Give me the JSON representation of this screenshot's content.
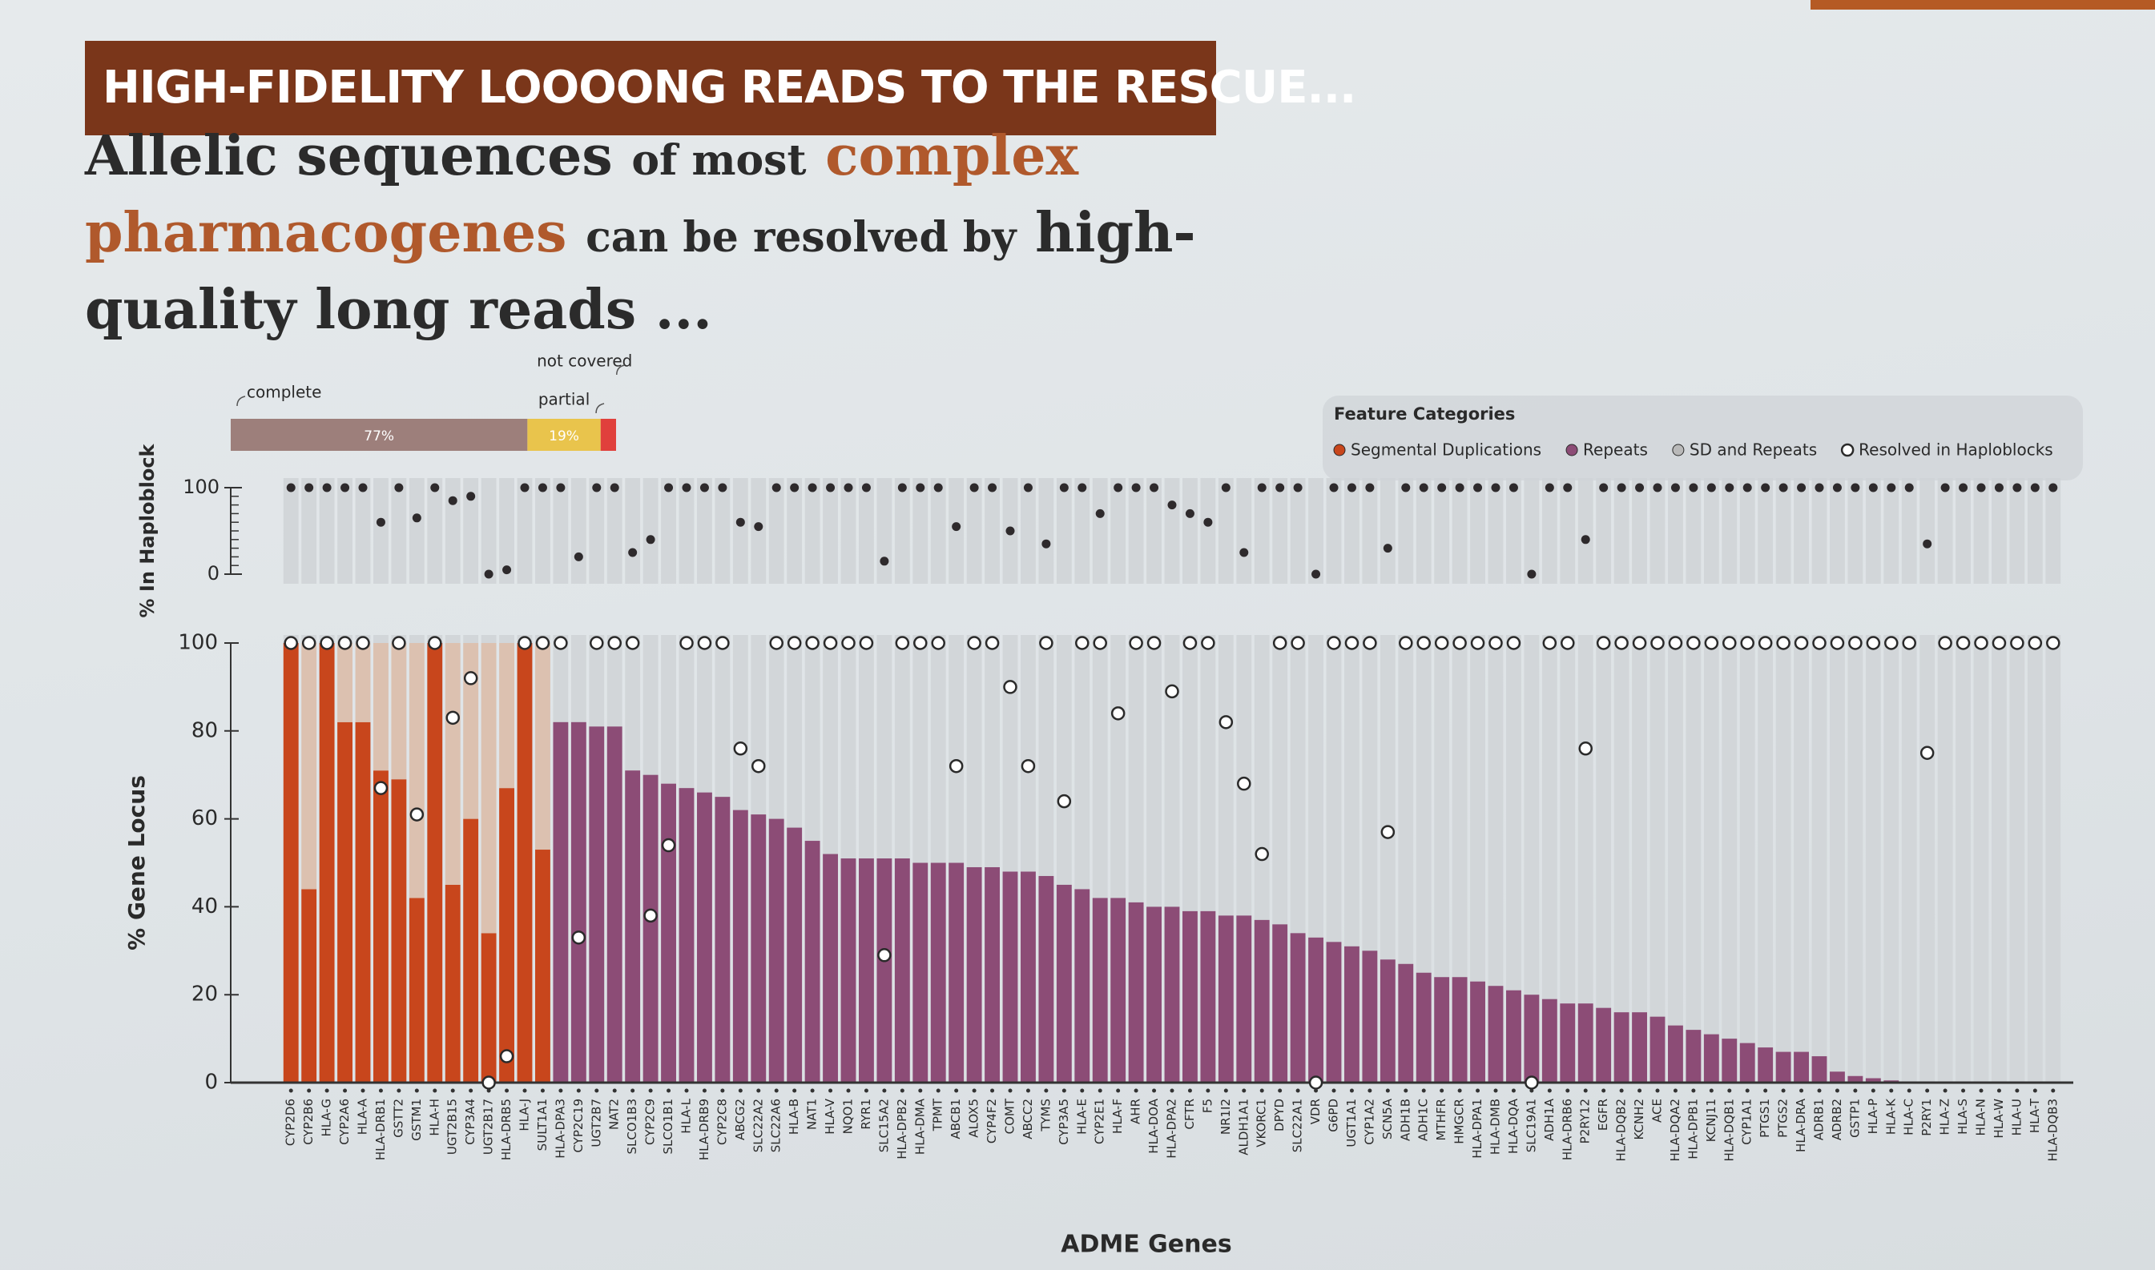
{
  "banner": "HIGH-FIDELITY LOOOONG READS TO THE RESCUE...",
  "headline": [
    "Allelic sequences",
    "of most",
    "complex",
    "pharmacogenes",
    "can be resolved by",
    "high-",
    "quality long reads ..."
  ],
  "chart_data": [
    {
      "type": "stacked-bar",
      "categories": [
        "complete",
        "partial",
        "not covered"
      ],
      "values": [
        77,
        19,
        4
      ],
      "value_labels": [
        "77%",
        "19%",
        null
      ],
      "colors": [
        "#9d7f7b",
        "#e9c44c",
        "#e0403c"
      ]
    },
    {
      "type": "dot",
      "ylabel": "% In Haploblock",
      "color": "#2e2a2c",
      "ylim": [
        0,
        100
      ],
      "yticks": [
        0,
        100
      ],
      "values": [
        100,
        100,
        100,
        100,
        100,
        60,
        100,
        65,
        100,
        85,
        90,
        0,
        5,
        100,
        100,
        100,
        20,
        100,
        100,
        25,
        40,
        100,
        100,
        100,
        100,
        60,
        55,
        100,
        100,
        100,
        100,
        100,
        100,
        15,
        100,
        100,
        100,
        55,
        100,
        100,
        50,
        100,
        35,
        100,
        100,
        70,
        100,
        100,
        100,
        80,
        70,
        60,
        100,
        25,
        100,
        100,
        100,
        0,
        100,
        100,
        100,
        30,
        100,
        100,
        100,
        100,
        100,
        100,
        100,
        0,
        100,
        100,
        40,
        100,
        100,
        100,
        100,
        100,
        100,
        100,
        100,
        100,
        100,
        100,
        100,
        100,
        100,
        100,
        100,
        100,
        100,
        35,
        100,
        100,
        100,
        100,
        100,
        100,
        100
      ]
    },
    {
      "type": "bar",
      "xlabel": "ADME Genes",
      "ylabel": "% Gene Locus",
      "ylim": [
        0,
        100
      ],
      "yticks": [
        0,
        20,
        40,
        60,
        80,
        100
      ],
      "legend": {
        "title": "Feature Categories"
      },
      "categories": [
        "CYP2D6",
        "CYP2B6",
        "HLA-G",
        "CYP2A6",
        "HLA-A",
        "HLA-DRB1",
        "GSTT2",
        "GSTM1",
        "HLA-H",
        "UGT2B15",
        "CYP3A4",
        "UGT2B17",
        "HLA-DRB5",
        "HLA-J",
        "SULT1A1",
        "HLA-DPA3",
        "CYP2C19",
        "UGT2B7",
        "NAT2",
        "SLCO1B3",
        "CYP2C9",
        "SLCO1B1",
        "HLA-L",
        "HLA-DRB9",
        "CYP2C8",
        "ABCG2",
        "SLC22A2",
        "SLC22A6",
        "HLA-B",
        "NAT1",
        "HLA-V",
        "NQO1",
        "RYR1",
        "SLC15A2",
        "HLA-DPB2",
        "HLA-DMA",
        "TPMT",
        "ABCB1",
        "ALOX5",
        "CYP4F2",
        "COMT",
        "ABCC2",
        "TYMS",
        "CYP3A5",
        "HLA-E",
        "CYP2E1",
        "HLA-F",
        "AHR",
        "HLA-DOA",
        "HLA-DPA2",
        "CFTR",
        "F5",
        "NR1I2",
        "ALDH1A1",
        "VKORC1",
        "DPYD",
        "SLC22A1",
        "VDR",
        "G6PD",
        "UGT1A1",
        "CYP1A2",
        "SCN5A",
        "ADH1B",
        "ADH1C",
        "MTHFR",
        "HMGCR",
        "HLA-DPA1",
        "HLA-DMB",
        "HLA-DQA",
        "SLC19A1",
        "ADH1A",
        "HLA-DRB6",
        "P2RY12",
        "EGFR",
        "HLA-DQB2",
        "KCNH2",
        "ACE",
        "HLA-DQA2",
        "HLA-DPB1",
        "KCNJ11",
        "HLA-DQB1",
        "CYP1A1",
        "PTGS1",
        "PTGS2",
        "HLA-DRA",
        "ADRB1",
        "ADRB2",
        "GSTP1",
        "HLA-P",
        "HLA-K",
        "HLA-C",
        "P2RY1",
        "HLA-Z",
        "HLA-S",
        "HLA-N",
        "HLA-W",
        "HLA-U",
        "HLA-T",
        "HLA-DQB3"
      ],
      "series": [
        {
          "name": "Segmental Duplications",
          "color": "#c8461c",
          "values": [
            100,
            44,
            100,
            82,
            82,
            71,
            69,
            42,
            100,
            45,
            60,
            34,
            67,
            100,
            53,
            null,
            null,
            null,
            null,
            null,
            null,
            null,
            null,
            null,
            null,
            null,
            null,
            null,
            null,
            null,
            null,
            null,
            null,
            null,
            null,
            null,
            null,
            null,
            null,
            null,
            null,
            null,
            null,
            null,
            null,
            null,
            null,
            null,
            null,
            null,
            null,
            null,
            null,
            null,
            null,
            null,
            null,
            null,
            null,
            null,
            null,
            null,
            null,
            null,
            null,
            null,
            null,
            null,
            null,
            null,
            null,
            null,
            null,
            null,
            null,
            null,
            null,
            null,
            null,
            null,
            null,
            null,
            null,
            null,
            null,
            null,
            null,
            null,
            null,
            null,
            null,
            null,
            null,
            null,
            null,
            null,
            null,
            null,
            null
          ]
        },
        {
          "name": "Repeats",
          "color": "#8c4c76",
          "values": [
            null,
            null,
            null,
            null,
            null,
            null,
            null,
            null,
            null,
            null,
            null,
            null,
            null,
            null,
            null,
            82,
            82,
            81,
            81,
            71,
            70,
            68,
            67,
            66,
            65,
            62,
            61,
            60,
            58,
            55,
            52,
            51,
            51,
            51,
            51,
            50,
            50,
            50,
            49,
            49,
            48,
            48,
            47,
            45,
            44,
            42,
            42,
            41,
            40,
            40,
            39,
            39,
            38,
            38,
            37,
            36,
            34,
            33,
            32,
            31,
            30,
            28,
            27,
            25,
            24,
            24,
            23,
            22,
            21,
            20,
            19,
            18,
            18,
            17,
            16,
            16,
            15,
            13,
            12,
            11,
            10,
            9,
            8,
            7,
            7,
            6,
            2.5,
            1.5,
            1,
            0.5,
            0,
            0,
            0,
            0,
            0,
            0,
            0,
            0,
            0
          ]
        },
        {
          "name": "SD and Repeats",
          "color": "#b9b9b9",
          "values": [
            null,
            null,
            null,
            null,
            null,
            null,
            null,
            null,
            null,
            null,
            null,
            null,
            null,
            null,
            null,
            null,
            null,
            null,
            null,
            null,
            null,
            null,
            null,
            null,
            null,
            null,
            null,
            null,
            null,
            null,
            null,
            null,
            null,
            null,
            null,
            null,
            null,
            null,
            null,
            null,
            null,
            null,
            null,
            null,
            null,
            null,
            null,
            null,
            null,
            null,
            null,
            null,
            null,
            null,
            null,
            null,
            null,
            null,
            null,
            null,
            null,
            null,
            null,
            null,
            null,
            null,
            null,
            null,
            null,
            null,
            null,
            null,
            null,
            null,
            null,
            null,
            null,
            null,
            null,
            null,
            null,
            null,
            null,
            null,
            null,
            null,
            null,
            null,
            null,
            null,
            null,
            null,
            null,
            null,
            null,
            null,
            null,
            null,
            null
          ]
        },
        {
          "color": "#dcc1b0",
          "values": [
            0,
            56,
            0,
            18,
            18,
            29,
            31,
            58,
            0,
            55,
            40,
            66,
            33,
            0,
            47,
            null,
            null,
            null,
            null,
            null,
            null,
            null,
            null,
            null,
            null,
            null,
            null,
            null,
            null,
            null,
            null,
            null,
            null,
            null,
            null,
            null,
            null,
            null,
            null,
            null,
            null,
            null,
            null,
            null,
            null,
            null,
            null,
            null,
            null,
            null,
            null,
            null,
            null,
            null,
            null,
            null,
            null,
            null,
            null,
            null,
            null,
            null,
            null,
            null,
            null,
            null,
            null,
            null,
            null,
            null,
            null,
            null,
            null,
            null,
            null,
            null,
            null,
            null,
            null,
            null,
            null,
            null,
            null,
            null,
            null,
            null,
            null,
            null,
            null,
            null,
            null,
            null,
            null,
            null,
            null,
            null,
            null,
            null,
            null
          ]
        },
        {
          "name": "Resolved in Haploblocks",
          "type": "circle",
          "color": "#ffffff",
          "values": [
            100,
            100,
            100,
            100,
            100,
            67,
            100,
            61,
            100,
            83,
            92,
            0,
            6,
            100,
            100,
            100,
            33,
            100,
            100,
            100,
            38,
            54,
            100,
            100,
            100,
            76,
            72,
            100,
            100,
            100,
            100,
            100,
            100,
            29,
            100,
            100,
            100,
            72,
            100,
            100,
            90,
            72,
            100,
            64,
            100,
            100,
            84,
            100,
            100,
            89,
            100,
            100,
            82,
            68,
            52,
            100,
            100,
            0,
            100,
            100,
            100,
            57,
            100,
            100,
            100,
            100,
            100,
            100,
            100,
            0,
            100,
            100,
            76,
            100,
            100,
            100,
            100,
            100,
            100,
            100,
            100,
            100,
            100,
            100,
            100,
            100,
            100,
            100,
            100,
            100,
            100,
            75,
            100,
            100,
            100,
            100,
            100,
            100,
            100
          ]
        }
      ]
    }
  ]
}
